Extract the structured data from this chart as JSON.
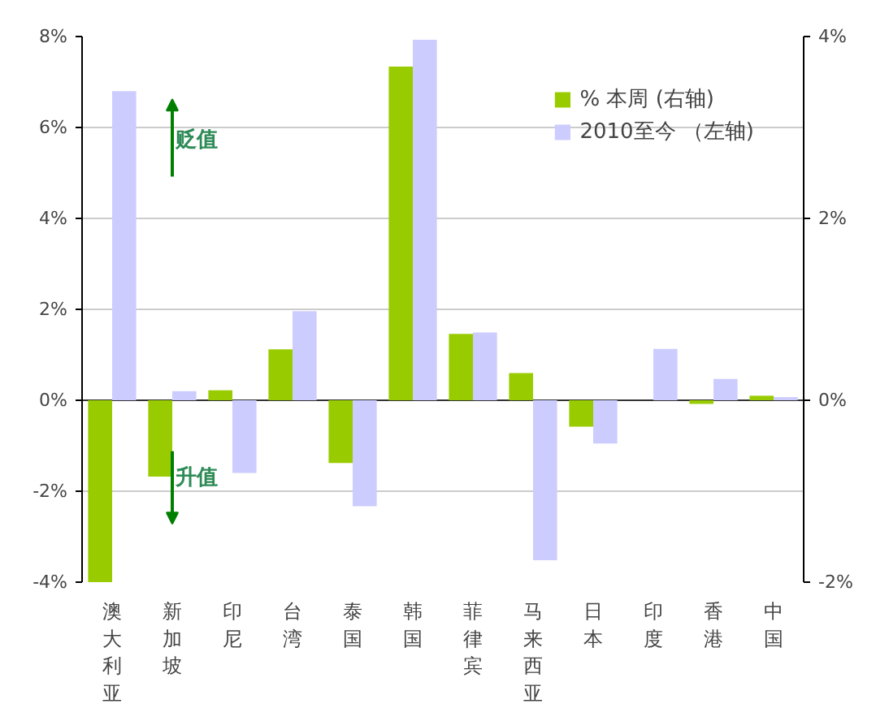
{
  "chart_data": {
    "type": "bar",
    "categories": [
      "澳大利亚",
      "新加坡",
      "印尼",
      "台湾",
      "泰国",
      "韩国",
      "菲律宾",
      "马来西亚",
      "日本",
      "印度",
      "香港",
      "中国"
    ],
    "series": [
      {
        "name": "% 本周 (右轴)",
        "color": "#99cc00",
        "axis": "y2",
        "values": [
          -2.0,
          -0.84,
          0.11,
          0.56,
          -0.69,
          3.67,
          0.73,
          0.3,
          -0.29,
          0,
          -0.04,
          0.05
        ]
      },
      {
        "name": "2010至今 （左轴)",
        "color": "#ccccff",
        "values": [
          6.8,
          0.2,
          -1.6,
          1.96,
          -2.33,
          7.93,
          1.49,
          -3.52,
          -0.95,
          1.13,
          0.47,
          0.07
        ]
      }
    ],
    "ylim": [
      -4,
      8
    ],
    "yticks": [
      {
        "value": -4,
        "label": "-4%"
      },
      {
        "value": -2,
        "label": "-2%"
      },
      {
        "value": 0,
        "label": "0%"
      },
      {
        "value": 2,
        "label": "2%"
      },
      {
        "value": 4,
        "label": "4%"
      },
      {
        "value": 6,
        "label": "6%"
      },
      {
        "value": 8,
        "label": "8%"
      }
    ],
    "y2lim": [
      -2,
      4
    ],
    "y2ticks": [
      {
        "value": -2,
        "label": "-2%"
      },
      {
        "value": 0,
        "label": "0%"
      },
      {
        "value": 2,
        "label": "2%"
      },
      {
        "value": 4,
        "label": "4%"
      }
    ],
    "annotations": [
      "贬值",
      "升值"
    ],
    "grid": "y",
    "legend": "top right"
  }
}
